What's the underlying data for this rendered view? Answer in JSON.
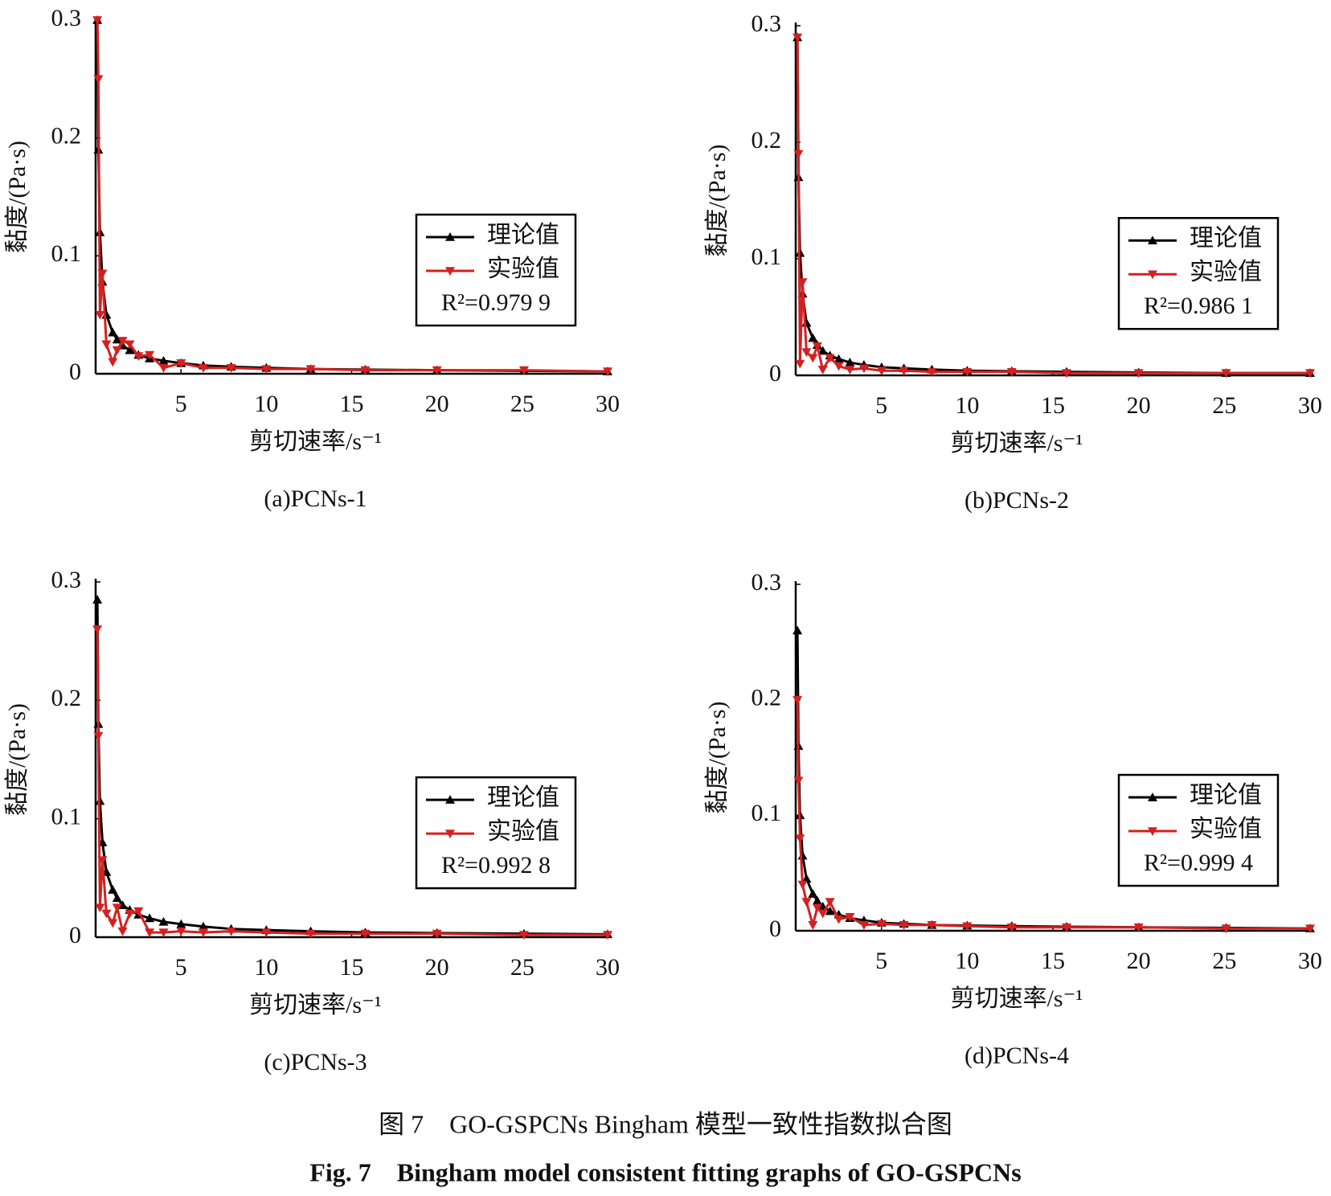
{
  "chart_data": [
    {
      "type": "line",
      "subtitle": "(a)PCNs-1",
      "xlabel": "剪切速率/s⁻¹",
      "ylabel": "黏度/(Pa·s)",
      "annotation": "R²=0.979 9",
      "xlim": [
        0,
        30
      ],
      "xticks": [
        5,
        10,
        15,
        20,
        25,
        30
      ],
      "ylim": [
        0,
        0.3
      ],
      "yticks": [
        0,
        0.1,
        0.2,
        0.3
      ],
      "legend": "right",
      "x": [
        0.1,
        0.16,
        0.25,
        0.4,
        0.63,
        1,
        1.26,
        1.58,
        2,
        2.51,
        3.16,
        3.98,
        5.01,
        6.31,
        7.94,
        10,
        12.6,
        15.8,
        20,
        25.1,
        30
      ],
      "series": [
        {
          "name": "理论值",
          "color": "#000000",
          "marker": "triangle-up",
          "values": [
            0.3,
            0.19,
            0.12,
            0.078,
            0.05,
            0.035,
            0.029,
            0.024,
            0.02,
            0.016,
            0.013,
            0.011,
            0.009,
            0.007,
            0.006,
            0.005,
            0.004,
            0.0035,
            0.003,
            0.0025,
            0.002
          ]
        },
        {
          "name": "实验值",
          "color": "#d42020",
          "marker": "triangle-down",
          "values": [
            0.3,
            0.25,
            0.05,
            0.085,
            0.025,
            0.01,
            0.02,
            0.028,
            0.025,
            0.015,
            0.016,
            0.005,
            0.009,
            0.005,
            0.005,
            0.004,
            0.004,
            0.003,
            0.003,
            0.003,
            0.002
          ]
        }
      ]
    },
    {
      "type": "line",
      "subtitle": "(b)PCNs-2",
      "xlabel": "剪切速率/s⁻¹",
      "ylabel": "黏度/(Pa·s)",
      "annotation": "R²=0.986 1",
      "xlim": [
        0,
        30
      ],
      "xticks": [
        5,
        10,
        15,
        20,
        25,
        30
      ],
      "ylim": [
        0,
        0.3
      ],
      "yticks": [
        0,
        0.1,
        0.2,
        0.3
      ],
      "legend": "right",
      "x": [
        0.1,
        0.16,
        0.25,
        0.4,
        0.63,
        1,
        1.26,
        1.58,
        2,
        2.51,
        3.16,
        3.98,
        5.01,
        6.31,
        7.94,
        10,
        12.6,
        15.8,
        20,
        25.1,
        30
      ],
      "series": [
        {
          "name": "理论值",
          "color": "#000000",
          "marker": "triangle-up",
          "values": [
            0.29,
            0.17,
            0.105,
            0.07,
            0.045,
            0.032,
            0.026,
            0.021,
            0.017,
            0.014,
            0.011,
            0.009,
            0.007,
            0.006,
            0.005,
            0.004,
            0.0035,
            0.003,
            0.0025,
            0.002,
            0.002
          ]
        },
        {
          "name": "实验值",
          "color": "#d42020",
          "marker": "triangle-down",
          "values": [
            0.29,
            0.19,
            0.01,
            0.08,
            0.02,
            0.015,
            0.025,
            0.005,
            0.015,
            0.008,
            0.005,
            0.006,
            0.004,
            0.004,
            0.003,
            0.003,
            0.003,
            0.002,
            0.002,
            0.002,
            0.002
          ]
        }
      ]
    },
    {
      "type": "line",
      "subtitle": "(c)PCNs-3",
      "xlabel": "剪切速率/s⁻¹",
      "ylabel": "黏度/(Pa·s)",
      "annotation": "R²=0.992 8",
      "xlim": [
        0,
        30
      ],
      "xticks": [
        5,
        10,
        15,
        20,
        25,
        30
      ],
      "ylim": [
        0,
        0.3
      ],
      "yticks": [
        0,
        0.1,
        0.2,
        0.3
      ],
      "legend": "right",
      "x": [
        0.1,
        0.16,
        0.25,
        0.4,
        0.63,
        1,
        1.26,
        1.58,
        2,
        2.51,
        3.16,
        3.98,
        5.01,
        6.31,
        7.94,
        10,
        12.6,
        15.8,
        20,
        25.1,
        30
      ],
      "series": [
        {
          "name": "理论值",
          "color": "#000000",
          "marker": "triangle-up",
          "values": [
            0.285,
            0.18,
            0.115,
            0.08,
            0.055,
            0.04,
            0.033,
            0.027,
            0.023,
            0.019,
            0.016,
            0.013,
            0.011,
            0.009,
            0.007,
            0.006,
            0.005,
            0.004,
            0.0035,
            0.003,
            0.0025
          ]
        },
        {
          "name": "实验值",
          "color": "#d42020",
          "marker": "triangle-down",
          "values": [
            0.26,
            0.17,
            0.025,
            0.065,
            0.02,
            0.012,
            0.025,
            0.005,
            0.02,
            0.022,
            0.004,
            0.004,
            0.005,
            0.004,
            0.005,
            0.004,
            0.003,
            0.003,
            0.003,
            0.002,
            0.002
          ]
        }
      ]
    },
    {
      "type": "line",
      "subtitle": "(d)PCNs-4",
      "xlabel": "剪切速率/s⁻¹",
      "ylabel": "黏度/(Pa·s)",
      "annotation": "R²=0.999 4",
      "xlim": [
        0,
        30
      ],
      "xticks": [
        5,
        10,
        15,
        20,
        25,
        30
      ],
      "ylim": [
        0,
        0.3
      ],
      "yticks": [
        0,
        0.1,
        0.2,
        0.3
      ],
      "legend": "right",
      "x": [
        0.1,
        0.16,
        0.25,
        0.4,
        0.63,
        1,
        1.26,
        1.58,
        2,
        2.51,
        3.16,
        3.98,
        5.01,
        6.31,
        7.94,
        10,
        12.6,
        15.8,
        20,
        25.1,
        30
      ],
      "series": [
        {
          "name": "理论值",
          "color": "#000000",
          "marker": "triangle-up",
          "values": [
            0.26,
            0.16,
            0.1,
            0.065,
            0.045,
            0.032,
            0.026,
            0.021,
            0.017,
            0.014,
            0.011,
            0.009,
            0.007,
            0.006,
            0.005,
            0.0045,
            0.004,
            0.0035,
            0.003,
            0.0025,
            0.002
          ]
        },
        {
          "name": "实验值",
          "color": "#d42020",
          "marker": "triangle-down",
          "values": [
            0.2,
            0.13,
            0.08,
            0.04,
            0.025,
            0.005,
            0.02,
            0.015,
            0.025,
            0.01,
            0.012,
            0.005,
            0.006,
            0.005,
            0.005,
            0.004,
            0.003,
            0.003,
            0.003,
            0.002,
            0.002
          ]
        }
      ]
    }
  ],
  "caption": {
    "chinese": "图 7　GO-GSPCNs Bingham 模型一致性指数拟合图",
    "english": "Fig. 7　Bingham model consistent fitting graphs of GO-GSPCNs"
  }
}
